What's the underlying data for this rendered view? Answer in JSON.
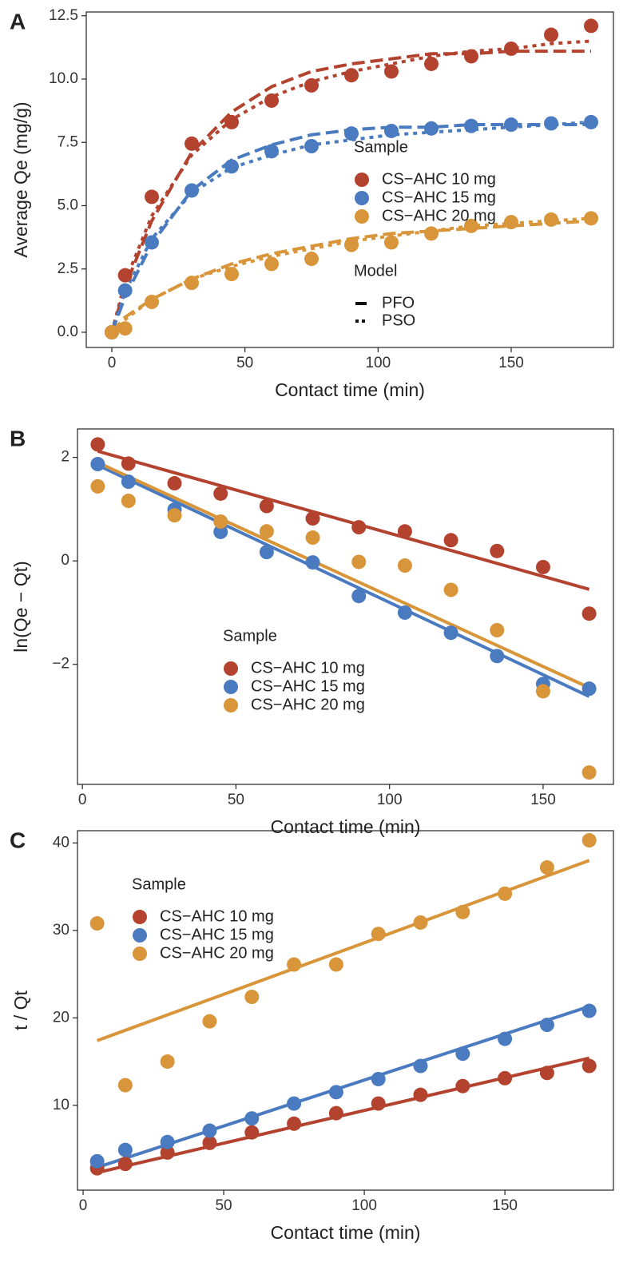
{
  "chart_data": [
    {
      "type": "scatter",
      "panel_label": "A",
      "x_label": "Contact time (min)",
      "y_label": "Average Qe (mg/g)",
      "x": [
        0,
        5,
        15,
        30,
        45,
        60,
        75,
        90,
        105,
        120,
        135,
        150,
        165,
        180
      ],
      "xlim": [
        -9.6,
        188.4
      ],
      "ylim": [
        -0.6,
        12.65
      ],
      "xticks": [
        0,
        50,
        100,
        150
      ],
      "yticks": [
        {
          "value": 0,
          "label": "0.0"
        },
        2.5,
        {
          "value": 5,
          "label": "5.0"
        },
        7.5,
        {
          "value": 10,
          "label": "10.0"
        },
        12.5
      ],
      "legend_title": "Sample",
      "legend_position": "center-right",
      "series": [
        {
          "name": "CS−AHC 10 mg",
          "color": "#b3432f",
          "values": [
            0,
            2.25,
            5.35,
            7.45,
            8.3,
            9.15,
            9.75,
            10.15,
            10.3,
            10.6,
            10.9,
            11.2,
            11.75,
            12.1
          ]
        },
        {
          "name": "CS−AHC 15 mg",
          "color": "#4a7bc0",
          "values": [
            0,
            1.65,
            3.55,
            5.6,
            6.55,
            7.15,
            7.35,
            7.85,
            7.95,
            8.05,
            8.15,
            8.2,
            8.25,
            8.3
          ]
        },
        {
          "name": "CS−AHC 20 mg",
          "color": "#d8953a",
          "values": [
            0,
            0.15,
            1.2,
            1.95,
            2.3,
            2.7,
            2.9,
            3.45,
            3.55,
            3.9,
            4.2,
            4.35,
            4.45,
            4.5
          ]
        }
      ],
      "model_legend_title": "Model",
      "models": [
        {
          "name": "PFO",
          "line_style": "dashed",
          "values": [
            [
              0,
              1.8,
              4.4,
              7.1,
              8.7,
              9.7,
              10.3,
              10.6,
              10.8,
              11.0,
              11.0,
              11.1,
              11.1,
              11.1
            ],
            [
              0,
              1.4,
              3.5,
              5.6,
              6.8,
              7.4,
              7.8,
              8.0,
              8.1,
              8.1,
              8.2,
              8.2,
              8.2,
              8.2
            ],
            [
              0,
              0.6,
              1.3,
              2.1,
              2.7,
              3.1,
              3.4,
              3.7,
              3.9,
              4.0,
              4.1,
              4.2,
              4.3,
              4.4
            ]
          ]
        },
        {
          "name": "PSO",
          "line_style": "dotted",
          "values": [
            [
              0,
              2.0,
              4.6,
              7.0,
              8.4,
              9.3,
              9.9,
              10.3,
              10.6,
              10.9,
              11.1,
              11.2,
              11.4,
              11.5
            ],
            [
              0,
              1.6,
              3.7,
              5.5,
              6.5,
              7.0,
              7.4,
              7.6,
              7.8,
              7.9,
              8.0,
              8.1,
              8.2,
              8.3
            ],
            [
              0,
              0.5,
              1.3,
              2.1,
              2.6,
              3.0,
              3.3,
              3.6,
              3.8,
              4.0,
              4.2,
              4.3,
              4.4,
              4.5
            ]
          ]
        }
      ]
    },
    {
      "type": "scatter",
      "panel_label": "B",
      "x_label": "Contact time (min)",
      "y_label": "ln(Qe − Qt)",
      "x": [
        5,
        15,
        30,
        45,
        60,
        75,
        90,
        105,
        120,
        135,
        150,
        165
      ],
      "xlim": [
        -1.6,
        172.9
      ],
      "ylim": [
        -4.32,
        2.55
      ],
      "xticks": [
        0,
        50,
        100,
        150
      ],
      "yticks": [
        {
          "value": -2,
          "label": "−2"
        },
        0,
        2
      ],
      "legend_title": "Sample",
      "legend_position": "bottom-center",
      "fit_x": [
        5,
        165
      ],
      "series": [
        {
          "name": "CS−AHC 10 mg",
          "color": "#b3432f",
          "values": [
            2.25,
            1.88,
            1.5,
            1.3,
            1.06,
            0.82,
            0.65,
            0.57,
            0.4,
            0.19,
            -0.12,
            -1.02
          ],
          "fit_values": [
            2.12,
            -0.55
          ]
        },
        {
          "name": "CS−AHC 15 mg",
          "color": "#4a7bc0",
          "values": [
            1.87,
            1.53,
            0.99,
            0.56,
            0.17,
            -0.03,
            -0.68,
            -1.0,
            -1.39,
            -1.84,
            -2.38,
            -2.47
          ],
          "fit_values": [
            1.85,
            -2.62
          ]
        },
        {
          "name": "CS−AHC 20 mg",
          "color": "#d8953a",
          "values": [
            1.44,
            1.16,
            0.88,
            0.76,
            0.57,
            0.45,
            -0.02,
            -0.09,
            -0.56,
            -1.34,
            -2.52,
            -4.09
          ],
          "fit_values": [
            1.9,
            -2.45
          ]
        }
      ]
    },
    {
      "type": "scatter",
      "panel_label": "C",
      "x_label": "Contact time (min)",
      "y_label": "t / Qt",
      "x": [
        5,
        15,
        30,
        45,
        60,
        75,
        90,
        105,
        120,
        135,
        150,
        165,
        180
      ],
      "xlim": [
        -2,
        188.6
      ],
      "ylim": [
        0.3,
        41.4
      ],
      "xticks": [
        0,
        50,
        100,
        150
      ],
      "yticks": [
        10,
        20,
        30,
        40
      ],
      "legend_title": "Sample",
      "legend_position": "top-left",
      "fit_x": [
        5,
        180
      ],
      "series": [
        {
          "name": "CS−AHC 10 mg",
          "color": "#b3432f",
          "values": [
            2.8,
            3.3,
            4.6,
            5.7,
            6.9,
            7.9,
            9.1,
            10.2,
            11.2,
            12.2,
            13.1,
            13.7,
            14.5
          ],
          "fit_values": [
            2.3,
            15.4
          ]
        },
        {
          "name": "CS−AHC 15 mg",
          "color": "#4a7bc0",
          "values": [
            3.6,
            4.9,
            5.8,
            7.1,
            8.5,
            10.2,
            11.5,
            13.0,
            14.5,
            15.9,
            17.6,
            19.2,
            20.8
          ],
          "fit_values": [
            2.9,
            21.3
          ]
        },
        {
          "name": "CS−AHC 20 mg",
          "color": "#d8953a",
          "values": [
            30.8,
            12.3,
            15.0,
            19.6,
            22.4,
            26.1,
            26.1,
            29.6,
            30.9,
            32.1,
            34.2,
            37.2,
            40.3
          ],
          "fit_values": [
            17.4,
            38.0
          ]
        }
      ]
    }
  ]
}
